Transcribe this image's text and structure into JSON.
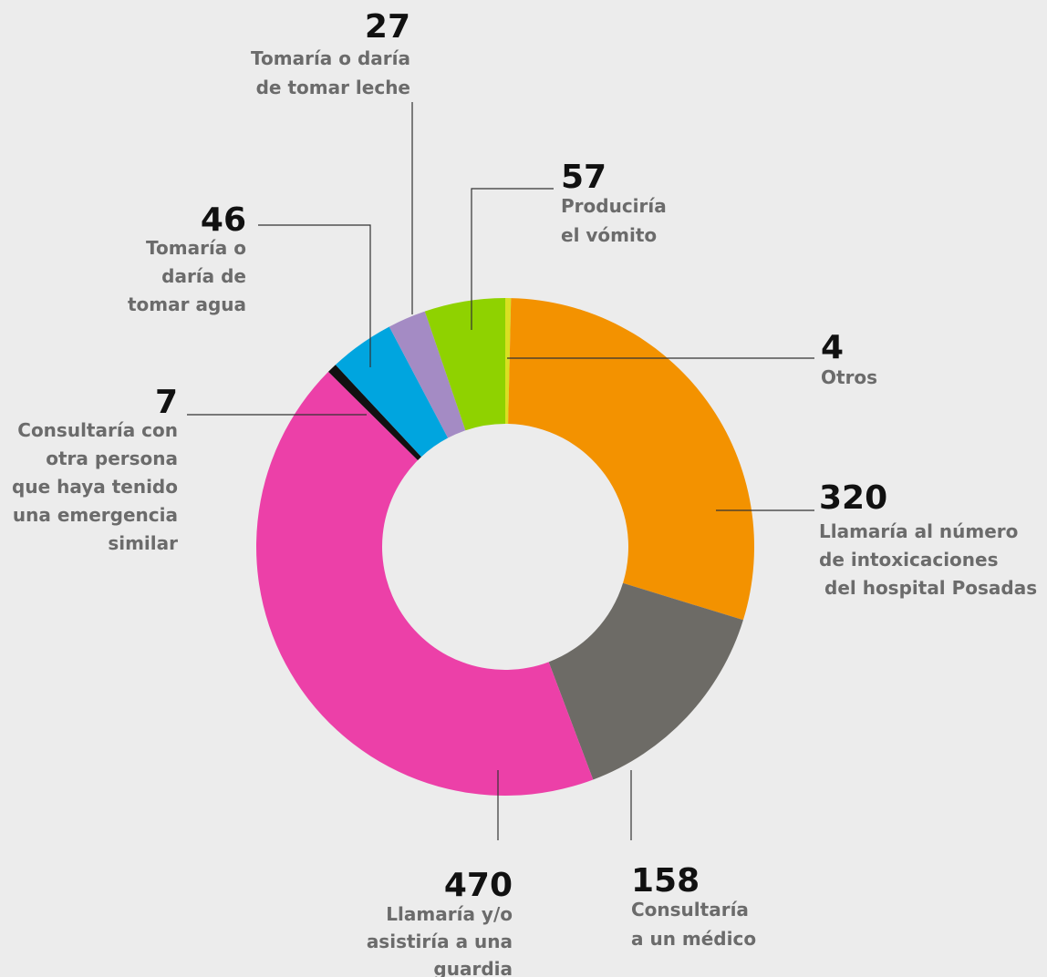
{
  "chart_data": {
    "type": "donut",
    "categories": [
      [
        "Otros"
      ],
      [
        "Llamaría al número",
        "de intoxicaciones",
        "del hospital Posadas"
      ],
      [
        "Consultaría",
        "a un médico"
      ],
      [
        "Llamaría y/o",
        "asistiría a una",
        "guardia"
      ],
      [
        "Consultaría con",
        "otra persona",
        "que haya tenido",
        "una emergencia",
        "similar"
      ],
      [
        "Tomaría o",
        "daría de",
        "tomar agua"
      ],
      [
        "Tomaría o daría",
        "de tomar leche"
      ],
      [
        "Produciría",
        "el vómito"
      ]
    ],
    "values": [
      4,
      320,
      158,
      470,
      7,
      46,
      27,
      57
    ],
    "colors": [
      "#d9e021",
      "#f39200",
      "#6d6b66",
      "#ec40a8",
      "#111111",
      "#00a5df",
      "#a48bc4",
      "#8fd200"
    ]
  }
}
